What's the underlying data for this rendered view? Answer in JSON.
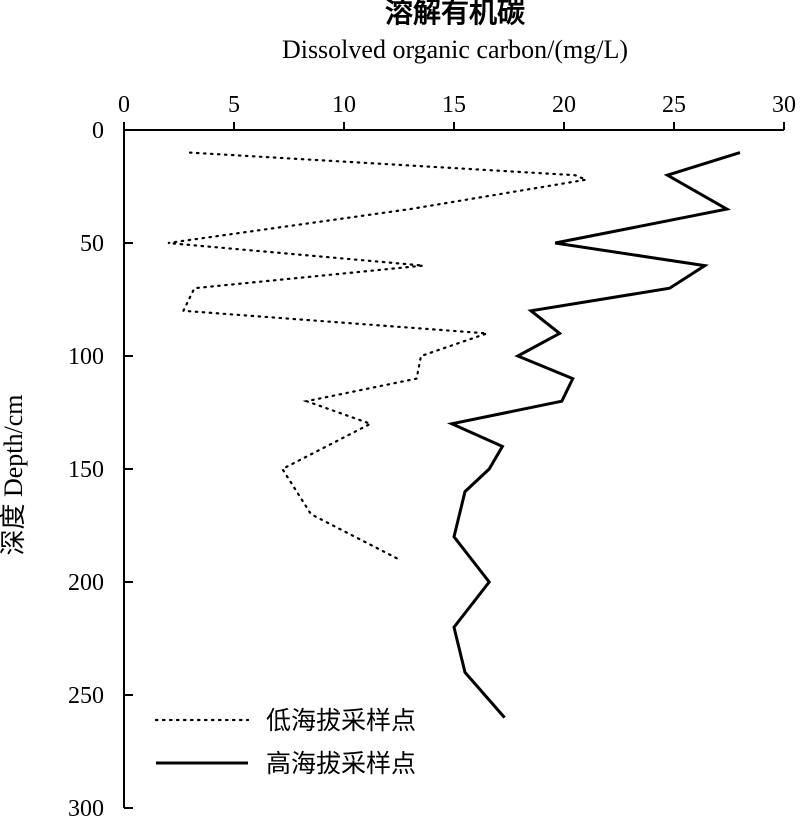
{
  "chart_data": {
    "type": "line",
    "title_cn": "溶解有机碳",
    "title_en": "Dissolved organic carbon/(mg/L)",
    "ylabel": "深度 Depth/cm",
    "xlim": [
      0,
      30
    ],
    "ylim": [
      0,
      300
    ],
    "x_axis_position": "top",
    "y_axis_inverted": true,
    "x_ticks": [
      "0",
      "5",
      "10",
      "15",
      "20",
      "25",
      "30"
    ],
    "y_ticks": [
      "0",
      "50",
      "100",
      "150",
      "200",
      "250",
      "300"
    ],
    "legend_position": "bottom-left",
    "series": [
      {
        "name": "低海拔采样点",
        "style": "dotted",
        "color": "#000000",
        "points": [
          [
            3.0,
            10
          ],
          [
            20.5,
            20
          ],
          [
            21.0,
            22
          ],
          [
            13.0,
            35
          ],
          [
            2.0,
            50
          ],
          [
            13.6,
            60
          ],
          [
            3.2,
            70
          ],
          [
            2.7,
            80
          ],
          [
            16.5,
            90
          ],
          [
            13.5,
            100
          ],
          [
            13.3,
            110
          ],
          [
            8.3,
            120
          ],
          [
            11.2,
            130
          ],
          [
            7.2,
            150
          ],
          [
            8.5,
            170
          ],
          [
            12.5,
            190
          ]
        ]
      },
      {
        "name": "高海拔采样点",
        "style": "solid",
        "color": "#000000",
        "points": [
          [
            28.0,
            10
          ],
          [
            24.7,
            20
          ],
          [
            27.4,
            35
          ],
          [
            19.6,
            50
          ],
          [
            26.4,
            60
          ],
          [
            24.8,
            70
          ],
          [
            18.5,
            80
          ],
          [
            19.8,
            90
          ],
          [
            17.9,
            100
          ],
          [
            20.4,
            110
          ],
          [
            19.9,
            120
          ],
          [
            14.9,
            130
          ],
          [
            17.2,
            140
          ],
          [
            16.6,
            150
          ],
          [
            15.5,
            160
          ],
          [
            15.0,
            180
          ],
          [
            16.6,
            200
          ],
          [
            15.0,
            220
          ],
          [
            15.5,
            240
          ],
          [
            17.3,
            260
          ]
        ]
      }
    ]
  }
}
